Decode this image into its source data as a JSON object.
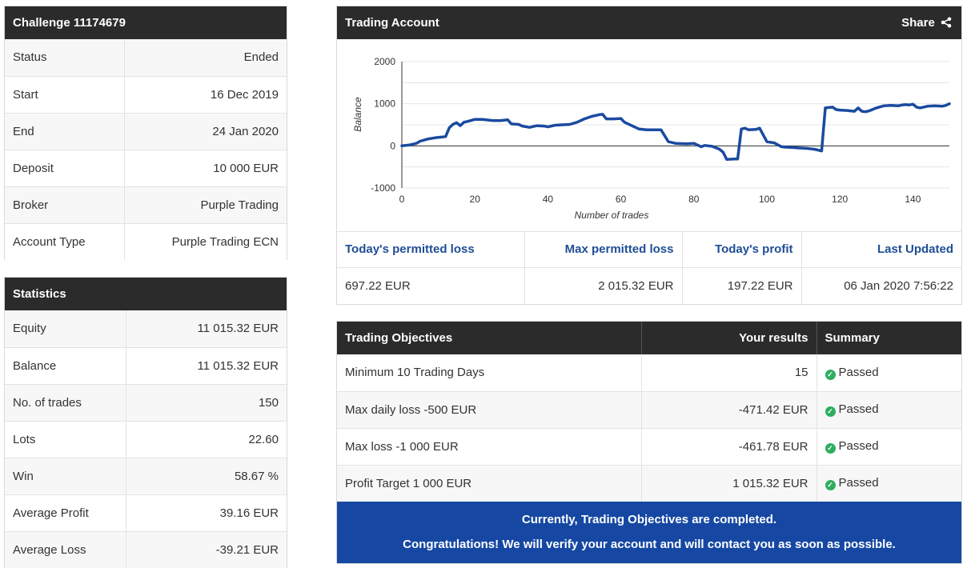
{
  "challenge": {
    "title": "Challenge 11174679",
    "rows": [
      {
        "label": "Status",
        "value": "Ended"
      },
      {
        "label": "Start",
        "value": "16 Dec 2019"
      },
      {
        "label": "End",
        "value": "24 Jan 2020"
      },
      {
        "label": "Deposit",
        "value": "10 000 EUR"
      },
      {
        "label": "Broker",
        "value": "Purple Trading"
      },
      {
        "label": "Account Type",
        "value": "Purple Trading ECN"
      }
    ]
  },
  "statistics": {
    "title": "Statistics",
    "rows": [
      {
        "label": "Equity",
        "value": "11 015.32 EUR"
      },
      {
        "label": "Balance",
        "value": "11 015.32 EUR"
      },
      {
        "label": "No. of trades",
        "value": "150"
      },
      {
        "label": "Lots",
        "value": "22.60"
      },
      {
        "label": "Win",
        "value": "58.67 %"
      },
      {
        "label": "Average Profit",
        "value": "39.16 EUR"
      },
      {
        "label": "Average Loss",
        "value": "-39.21 EUR"
      }
    ]
  },
  "account": {
    "title": "Trading Account",
    "share_label": "Share",
    "metrics_headers": [
      "Today's permitted loss",
      "Max permitted loss",
      "Today's profit",
      "Last Updated"
    ],
    "metrics_values": [
      "697.22 EUR",
      "2 015.32 EUR",
      "197.22 EUR",
      "06 Jan 2020 7:56:22"
    ]
  },
  "chart_data": {
    "type": "line",
    "xlabel": "Number of trades",
    "ylabel": "Balance",
    "xlim": [
      0,
      150
    ],
    "ylim": [
      -1000,
      2000
    ],
    "x_ticks": [
      0,
      20,
      40,
      60,
      80,
      100,
      120,
      140
    ],
    "y_ticks": [
      -1000,
      0,
      1000,
      2000
    ],
    "grid": true,
    "color": "#1a4aa0",
    "series": [
      {
        "x": [
          0,
          2,
          4,
          5,
          7,
          9,
          11,
          12,
          13,
          14,
          15,
          16,
          17,
          18,
          20,
          22,
          23,
          25,
          27,
          29,
          30,
          32,
          33,
          35,
          37,
          39,
          40,
          42,
          44,
          46,
          48,
          50,
          52,
          54,
          55,
          56,
          58,
          60,
          61,
          63,
          65,
          67,
          69,
          71,
          73,
          75,
          78,
          80,
          82,
          83,
          85,
          87,
          88,
          89,
          91,
          92,
          93,
          94,
          95,
          97,
          98,
          100,
          102,
          104,
          105,
          107,
          109,
          111,
          113,
          115,
          116,
          117,
          118,
          119,
          120,
          122,
          124,
          125,
          126,
          127,
          128,
          130,
          132,
          134,
          136,
          137,
          138,
          139,
          140,
          141,
          142,
          144,
          146,
          148,
          149,
          150
        ],
        "y": [
          0,
          20,
          60,
          110,
          160,
          190,
          210,
          220,
          430,
          510,
          550,
          480,
          560,
          580,
          630,
          630,
          620,
          600,
          600,
          620,
          520,
          510,
          470,
          440,
          480,
          470,
          450,
          490,
          500,
          510,
          560,
          640,
          700,
          740,
          750,
          640,
          640,
          650,
          560,
          480,
          400,
          380,
          380,
          380,
          100,
          60,
          50,
          60,
          -20,
          10,
          -10,
          -80,
          -150,
          -320,
          -310,
          -310,
          400,
          420,
          380,
          390,
          420,
          100,
          70,
          -20,
          -30,
          -40,
          -50,
          -60,
          -80,
          -120,
          900,
          910,
          920,
          860,
          850,
          840,
          820,
          900,
          820,
          810,
          830,
          900,
          950,
          960,
          950,
          970,
          980,
          970,
          990,
          920,
          900,
          940,
          950,
          940,
          960,
          1000
        ]
      }
    ]
  },
  "objectives": {
    "headers": [
      "Trading Objectives",
      "Your results",
      "Summary"
    ],
    "rows": [
      {
        "objective": "Minimum 10 Trading Days",
        "result": "15",
        "summary": "Passed"
      },
      {
        "objective": "Max daily loss -500 EUR",
        "result": "-471.42 EUR",
        "summary": "Passed"
      },
      {
        "objective": "Max loss -1 000 EUR",
        "result": "-461.78 EUR",
        "summary": "Passed"
      },
      {
        "objective": "Profit Target 1 000 EUR",
        "result": "1 015.32 EUR",
        "summary": "Passed"
      }
    ],
    "banner_line1": "Currently, Trading Objectives are completed.",
    "banner_line2": "Congratulations! We will verify your account and will contact you as soon as possible."
  }
}
